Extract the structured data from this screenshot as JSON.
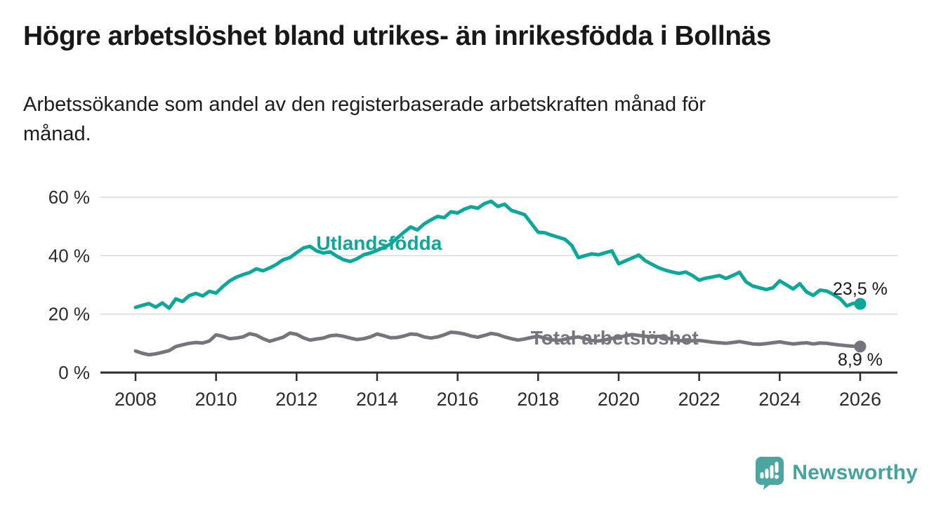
{
  "header": {
    "title": "Högre arbetslöshet bland utrikes- än inrikesfödda i Bollnäs",
    "subtitle": "Arbetssökande som andel av den registerbaserade arbetskraften månad för\nmånad."
  },
  "footer": {
    "brand": "Newsworthy"
  },
  "colors": {
    "accent_teal": "#0ba79a",
    "series_gray": "#75757d",
    "grid": "#d9d9d9",
    "axis": "#2d2d2d",
    "tick_text": "#2b2b2b",
    "value_text": "#1a1a1a",
    "logo_teal": "#4ba6a1"
  },
  "chart_data": {
    "type": "line",
    "title": "Högre arbetslöshet bland utrikes- än inrikesfödda i Bollnäs",
    "subtitle": "Arbetssökande som andel av den registerbaserade arbetskraften månad för månad.",
    "grid": "horizontal",
    "legend_position": "inline-labels",
    "x_start": 2008,
    "x_step_years": 0.1666667,
    "x_ticks": [
      2008,
      2010,
      2012,
      2014,
      2016,
      2018,
      2020,
      2022,
      2024,
      2026
    ],
    "x_tick_labels": [
      "2008",
      "2010",
      "2012",
      "2014",
      "2016",
      "2018",
      "2020",
      "2022",
      "2024",
      "2026"
    ],
    "y_ticks": [
      0,
      20,
      40,
      60
    ],
    "y_tick_labels": [
      "0 %",
      "20 %",
      "40 %",
      "60 %"
    ],
    "ylim": [
      0,
      62
    ],
    "xlabel": "",
    "ylabel": "",
    "series": [
      {
        "id": "utlandsfodda",
        "name": "Utlandsfödda",
        "color": "#0ba79a",
        "label_pos": {
          "x": 2014.05,
          "y": 44.4
        },
        "end_label": "23,5 %",
        "end_label_side": "above",
        "last_value": 23.5,
        "values": [
          22.3,
          23.0,
          23.6,
          22.4,
          23.8,
          22.0,
          25.2,
          24.3,
          26.3,
          27.1,
          26.2,
          27.8,
          27.2,
          29.4,
          31.3,
          32.6,
          33.5,
          34.2,
          35.5,
          34.8,
          35.8,
          37.0,
          38.6,
          39.3,
          41.0,
          42.6,
          43.2,
          41.6,
          40.9,
          41.3,
          39.8,
          38.6,
          38.0,
          38.9,
          40.3,
          40.9,
          41.8,
          42.8,
          44.0,
          46.0,
          48.0,
          49.8,
          48.8,
          50.8,
          52.2,
          53.4,
          53.0,
          55.0,
          54.6,
          55.9,
          56.7,
          56.2,
          57.8,
          58.6,
          56.8,
          57.6,
          55.5,
          54.8,
          54.0,
          51.0,
          48.0,
          47.8,
          47.0,
          46.3,
          45.6,
          43.5,
          39.3,
          40.0,
          40.6,
          40.3,
          41.0,
          41.6,
          37.2,
          38.2,
          39.2,
          40.2,
          38.2,
          37.0,
          35.8,
          35.0,
          34.4,
          33.9,
          34.4,
          33.2,
          31.6,
          32.3,
          32.7,
          33.2,
          32.2,
          33.2,
          34.3,
          31.0,
          29.6,
          29.0,
          28.4,
          29.0,
          31.4,
          30.0,
          28.6,
          30.4,
          27.6,
          26.4,
          28.2,
          27.9,
          26.7,
          25.3,
          22.8,
          23.7,
          23.5
        ]
      },
      {
        "id": "total-arbetsloshet",
        "name": "Total arbetslöshet",
        "color": "#75757d",
        "label_pos": {
          "x": 2019.9,
          "y": 12.0
        },
        "end_label": "8,9 %",
        "end_label_side": "below",
        "last_value": 8.9,
        "values": [
          7.4,
          6.6,
          6.1,
          6.4,
          6.9,
          7.5,
          8.9,
          9.5,
          10.0,
          10.3,
          10.1,
          10.8,
          12.9,
          12.4,
          11.6,
          11.8,
          12.2,
          13.3,
          12.8,
          11.6,
          10.7,
          11.4,
          12.1,
          13.5,
          13.1,
          11.9,
          11.1,
          11.5,
          11.8,
          12.6,
          12.8,
          12.4,
          11.8,
          11.3,
          11.6,
          12.2,
          13.2,
          12.6,
          11.9,
          12.0,
          12.5,
          13.2,
          13.0,
          12.2,
          11.8,
          12.2,
          12.9,
          13.8,
          13.6,
          13.2,
          12.5,
          12.1,
          12.7,
          13.4,
          13.0,
          12.2,
          11.6,
          11.1,
          11.5,
          12.0,
          12.4,
          11.8,
          11.2,
          11.0,
          11.4,
          11.9,
          12.2,
          11.6,
          11.0,
          10.8,
          11.2,
          11.7,
          12.0,
          12.6,
          13.0,
          12.7,
          12.4,
          12.2,
          12.4,
          11.9,
          11.4,
          11.0,
          10.8,
          10.9,
          11.0,
          10.7,
          10.4,
          10.2,
          10.0,
          10.3,
          10.6,
          10.2,
          9.8,
          9.7,
          9.9,
          10.2,
          10.5,
          10.1,
          9.8,
          10.0,
          10.2,
          9.8,
          10.1,
          10.0,
          9.7,
          9.4,
          9.2,
          9.0,
          8.9
        ]
      }
    ]
  }
}
